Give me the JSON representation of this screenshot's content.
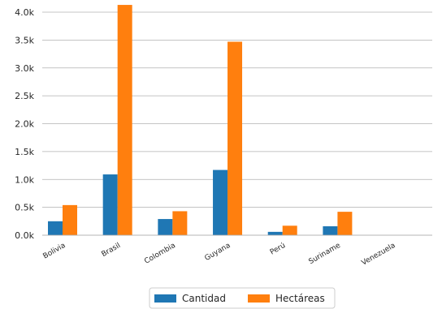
{
  "chart_data": {
    "type": "bar",
    "categories": [
      "Bolivia",
      "Brasil",
      "Colombia",
      "Guyana",
      "Perú",
      "Suriname",
      "Venezuela"
    ],
    "series": [
      {
        "name": "Cantidad",
        "color": "#1f77b4",
        "values": [
          250,
          1090,
          290,
          1170,
          60,
          160,
          0
        ]
      },
      {
        "name": "Hectáreas",
        "color": "#ff7f0e",
        "values": [
          540,
          4130,
          430,
          3470,
          170,
          420,
          0
        ]
      }
    ],
    "ylim": [
      0,
      4000
    ],
    "yticks": [
      0,
      500,
      1000,
      1500,
      2000,
      2500,
      3000,
      3500,
      4000
    ],
    "ytick_labels": [
      "0.0k",
      "0.5k",
      "1.0k",
      "1.5k",
      "2.0k",
      "2.5k",
      "3.0k",
      "3.5k",
      "4.0k"
    ],
    "grid": "horizontal",
    "legend": "bottom-center"
  }
}
